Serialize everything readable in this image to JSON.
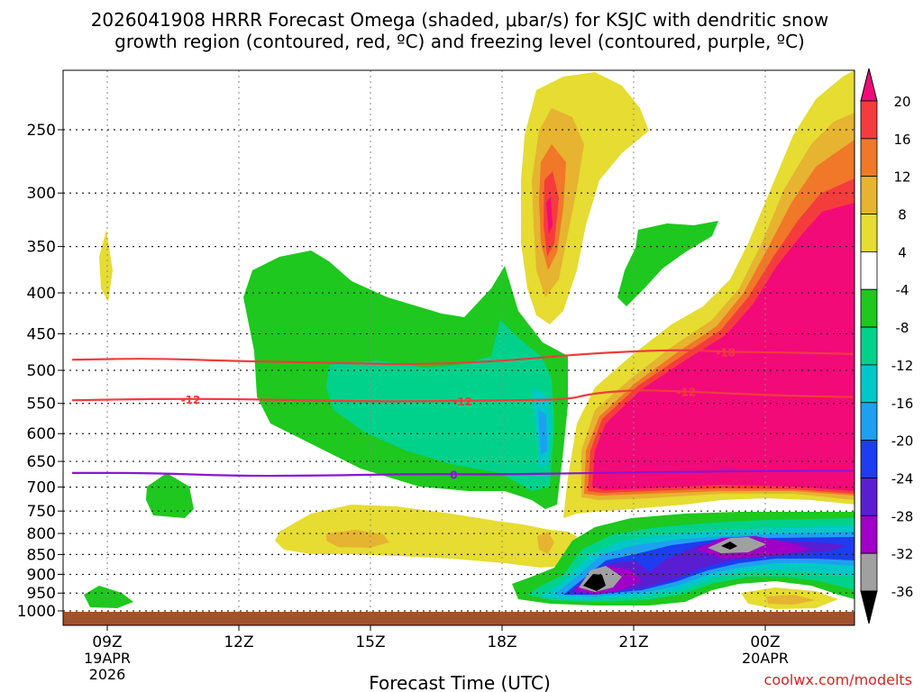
{
  "chart_data": {
    "type": "heatmap",
    "title_line1": "2026041908 HRRR Forecast Omega (shaded, μbar/s) for KSJC with dendritic snow",
    "title_line2": "growth region (contoured, red, ºC) and freezing level (contoured, purple, ºC)",
    "xlabel": "Forecast Time (UTC)",
    "credit": "coolwx.com/modelts",
    "x_ticks": [
      {
        "hour": 9,
        "label": "09Z",
        "sub1": "19APR",
        "sub2": "2026"
      },
      {
        "hour": 12,
        "label": "12Z",
        "sub1": "",
        "sub2": ""
      },
      {
        "hour": 15,
        "label": "15Z",
        "sub1": "",
        "sub2": ""
      },
      {
        "hour": 18,
        "label": "18Z",
        "sub1": "",
        "sub2": ""
      },
      {
        "hour": 21,
        "label": "21Z",
        "sub1": "",
        "sub2": ""
      },
      {
        "hour": 24,
        "label": "00Z",
        "sub1": "20APR",
        "sub2": ""
      }
    ],
    "xlim": [
      8.2,
      26
    ],
    "y_ticks": [
      250,
      300,
      350,
      400,
      450,
      500,
      550,
      600,
      650,
      700,
      750,
      800,
      850,
      900,
      950,
      1000
    ],
    "ylim_hpa": [
      200,
      1030
    ],
    "colorbar": {
      "labels": [
        "20",
        "16",
        "12",
        "8",
        "4",
        "-4",
        "-8",
        "-12",
        "-16",
        "-20",
        "-24",
        "-28",
        "-32",
        "-36"
      ],
      "colors": [
        "#f20a78",
        "#f53c3c",
        "#f07828",
        "#e6b430",
        "#e6dc32",
        "#ffffff",
        "#1ec81e",
        "#00d28c",
        "#00c8c8",
        "#1ea0f0",
        "#1e3cf0",
        "#5a1ed2",
        "#a000c8",
        "#a0a0a0",
        "#000000"
      ]
    },
    "contours": [
      {
        "name": "-18",
        "color": "#f03c3c",
        "points": [
          [
            8.2,
            485
          ],
          [
            10,
            483
          ],
          [
            12,
            487
          ],
          [
            14,
            489
          ],
          [
            16,
            492
          ],
          [
            18,
            487
          ],
          [
            20,
            476
          ],
          [
            22,
            471
          ],
          [
            23,
            474
          ],
          [
            24.5,
            475
          ],
          [
            26,
            477
          ]
        ],
        "label_at": 23.1
      },
      {
        "name": "-12",
        "color": "#f03c3c",
        "points": [
          [
            8.2,
            545
          ],
          [
            10,
            543
          ],
          [
            12,
            543
          ],
          [
            14,
            546
          ],
          [
            16,
            547
          ],
          [
            18,
            545
          ],
          [
            19.5,
            544
          ],
          [
            20,
            535
          ],
          [
            21,
            529
          ],
          [
            22,
            531
          ],
          [
            23,
            534
          ],
          [
            24.5,
            538
          ],
          [
            26,
            540
          ]
        ],
        "label_at": [
          10.9,
          17.1,
          22.2
        ]
      },
      {
        "name": "0",
        "color": "#8c14d2",
        "points": [
          [
            8.2,
            672
          ],
          [
            10,
            672
          ],
          [
            12,
            678
          ],
          [
            14,
            677
          ],
          [
            16,
            674
          ],
          [
            18,
            675
          ],
          [
            20,
            672
          ],
          [
            22,
            670
          ],
          [
            24,
            668
          ],
          [
            26,
            668
          ]
        ],
        "label_at": 16.9
      }
    ]
  }
}
